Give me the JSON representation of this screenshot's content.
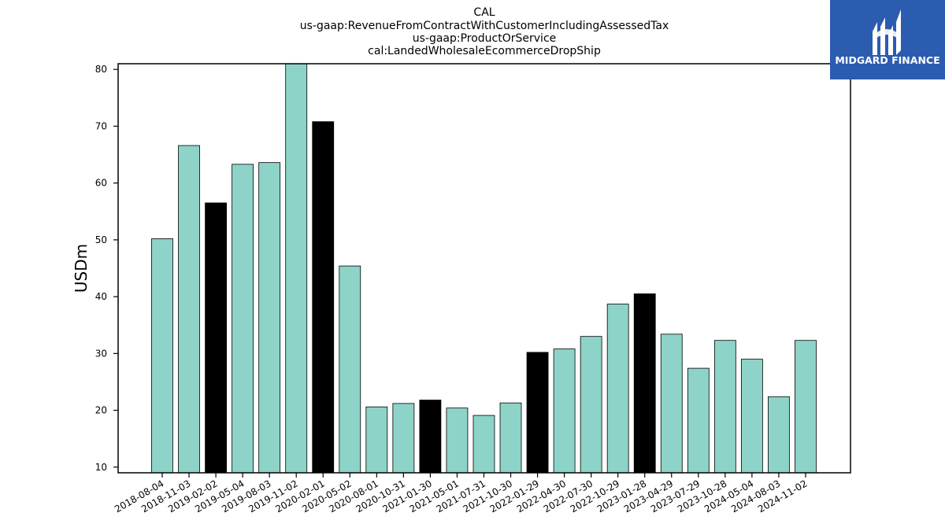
{
  "chart_data": {
    "type": "bar",
    "title_lines": [
      "CAL",
      "us-gaap:RevenueFromContractWithCustomerIncludingAssessedTax",
      "us-gaap:ProductOrService",
      "cal:LandedWholesaleEcommerceDropShip"
    ],
    "xlabel": "",
    "ylabel": "USDm",
    "ylim": [
      9,
      81
    ],
    "yticks": [
      10,
      20,
      30,
      40,
      50,
      60,
      70,
      80
    ],
    "categories": [
      "2018-08-04",
      "2018-11-03",
      "2019-02-02",
      "2019-05-04",
      "2019-08-03",
      "2019-11-02",
      "2020-02-01",
      "2020-05-02",
      "2020-08-01",
      "2020-10-31",
      "2021-01-30",
      "2021-05-01",
      "2021-07-31",
      "2021-10-30",
      "2022-01-29",
      "2022-04-30",
      "2022-07-30",
      "2022-10-29",
      "2023-01-28",
      "2023-04-29",
      "2023-07-29",
      "2023-10-28",
      "2024-05-04",
      "2024-08-03",
      "2024-11-02"
    ],
    "values": [
      50.2,
      66.6,
      56.5,
      63.3,
      63.6,
      81.5,
      70.8,
      45.4,
      20.6,
      21.2,
      21.8,
      20.4,
      19.1,
      21.3,
      30.2,
      30.8,
      33.0,
      38.7,
      40.5,
      33.4,
      27.4,
      32.3,
      29.0,
      22.4,
      32.3
    ],
    "highlighted": [
      false,
      false,
      true,
      false,
      false,
      false,
      true,
      false,
      false,
      false,
      true,
      false,
      false,
      false,
      true,
      false,
      false,
      false,
      true,
      false,
      false,
      false,
      false,
      false,
      false
    ],
    "colors": {
      "bar": "#8dd3c7",
      "highlight": "#000000",
      "edge": "#000000"
    },
    "grid": false,
    "legend": "none"
  },
  "logo": {
    "text": "MIDGARD FINANCE",
    "background": "#2b5cb0",
    "icon": "midgard-finance-logo-icon"
  }
}
